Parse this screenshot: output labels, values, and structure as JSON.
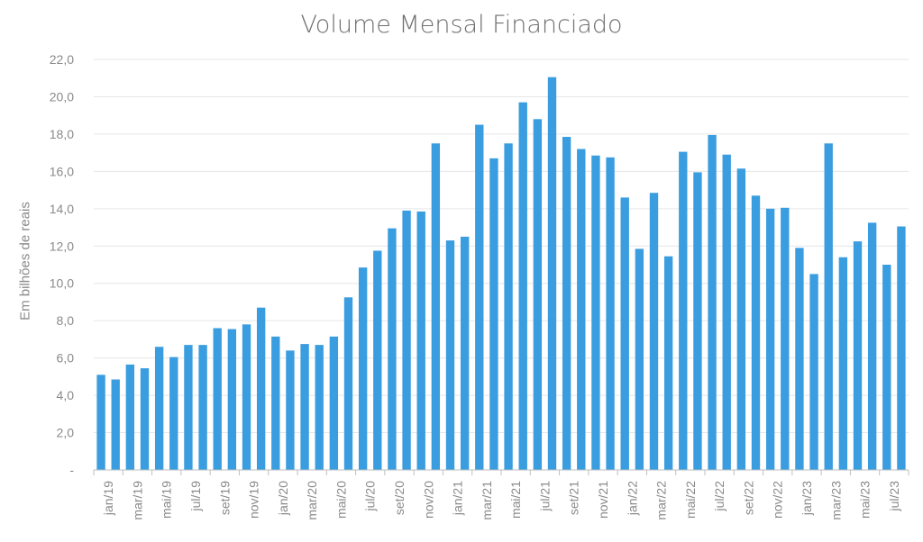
{
  "chart_data": {
    "type": "bar",
    "title": "Volume Mensal Financiado",
    "xlabel": "",
    "ylabel": "Em bilhões de reais",
    "ylim": [
      0,
      22
    ],
    "y_ticks": [
      "-",
      "2,0",
      "4,0",
      "6,0",
      "8,0",
      "10,0",
      "12,0",
      "14,0",
      "16,0",
      "18,0",
      "20,0",
      "22,0"
    ],
    "grid": true,
    "bar_color": "#3a9de0",
    "categories": [
      "jan/19",
      "fev/19",
      "mar/19",
      "abr/19",
      "mai/19",
      "jun/19",
      "jul/19",
      "ago/19",
      "set/19",
      "out/19",
      "nov/19",
      "dez/19",
      "jan/20",
      "fev/20",
      "mar/20",
      "abr/20",
      "mai/20",
      "jun/20",
      "jul/20",
      "ago/20",
      "set/20",
      "out/20",
      "nov/20",
      "dez/20",
      "jan/21",
      "fev/21",
      "mar/21",
      "abr/21",
      "mai/21",
      "jun/21",
      "jul/21",
      "ago/21",
      "set/21",
      "out/21",
      "nov/21",
      "dez/21",
      "jan/22",
      "fev/22",
      "mar/22",
      "abr/22",
      "mai/22",
      "jun/22",
      "jul/22",
      "ago/22",
      "set/22",
      "out/22",
      "nov/22",
      "dez/22",
      "jan/23",
      "fev/23",
      "mar/23",
      "abr/23",
      "mai/23",
      "jun/23",
      "jul/23",
      "ago/23"
    ],
    "tick_labels": [
      "jan/19",
      "mar/19",
      "mai/19",
      "jul/19",
      "set/19",
      "nov/19",
      "jan/20",
      "mar/20",
      "mai/20",
      "jul/20",
      "set/20",
      "nov/20",
      "jan/21",
      "mar/21",
      "mai/21",
      "jul/21",
      "set/21",
      "nov/21",
      "jan/22",
      "mar/22",
      "mai/22",
      "jul/22",
      "set/22",
      "nov/22",
      "jan/23",
      "mar/23",
      "mai/23",
      "jul/23"
    ],
    "values": [
      5.1,
      4.85,
      5.65,
      5.45,
      6.6,
      6.05,
      6.7,
      6.7,
      7.6,
      7.55,
      7.8,
      8.7,
      7.15,
      6.4,
      6.75,
      6.7,
      7.15,
      9.25,
      10.85,
      11.75,
      12.95,
      13.9,
      13.85,
      17.5,
      12.3,
      12.5,
      18.5,
      16.7,
      17.5,
      19.7,
      18.8,
      21.05,
      17.85,
      17.2,
      16.85,
      16.75,
      14.6,
      11.85,
      14.85,
      11.45,
      17.05,
      15.95,
      17.95,
      16.9,
      16.15,
      14.7,
      14.0,
      14.05,
      11.9,
      10.5,
      17.5,
      11.4,
      12.25,
      13.25,
      11.0,
      13.05
    ]
  }
}
